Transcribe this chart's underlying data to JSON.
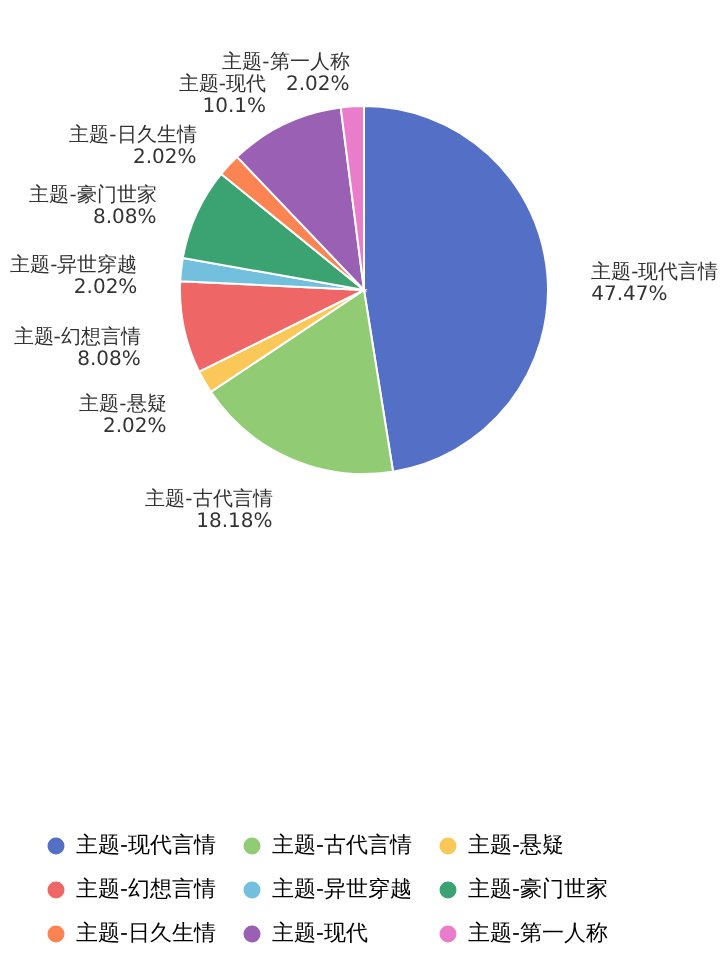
{
  "chart_data": {
    "type": "pie",
    "categories": [
      "主题-现代言情",
      "主题-古代言情",
      "主题-悬疑",
      "主题-幻想言情",
      "主题-异世穿越",
      "主题-豪门世家",
      "主题-日久生情",
      "主题-现代",
      "主题-第一人称"
    ],
    "values": [
      47.47,
      18.18,
      2.02,
      8.08,
      2.02,
      8.08,
      2.02,
      10.1,
      2.02
    ],
    "value_labels": [
      "47.47%",
      "18.18%",
      "2.02%",
      "8.08%",
      "2.02%",
      "8.08%",
      "2.02%",
      "10.1%",
      "2.02%"
    ],
    "colors": [
      "#5470c6",
      "#91cc75",
      "#fac858",
      "#ee6666",
      "#73c0de",
      "#3ba272",
      "#fc8452",
      "#9a60b4",
      "#ea7ccc"
    ],
    "legend": "bottom"
  }
}
